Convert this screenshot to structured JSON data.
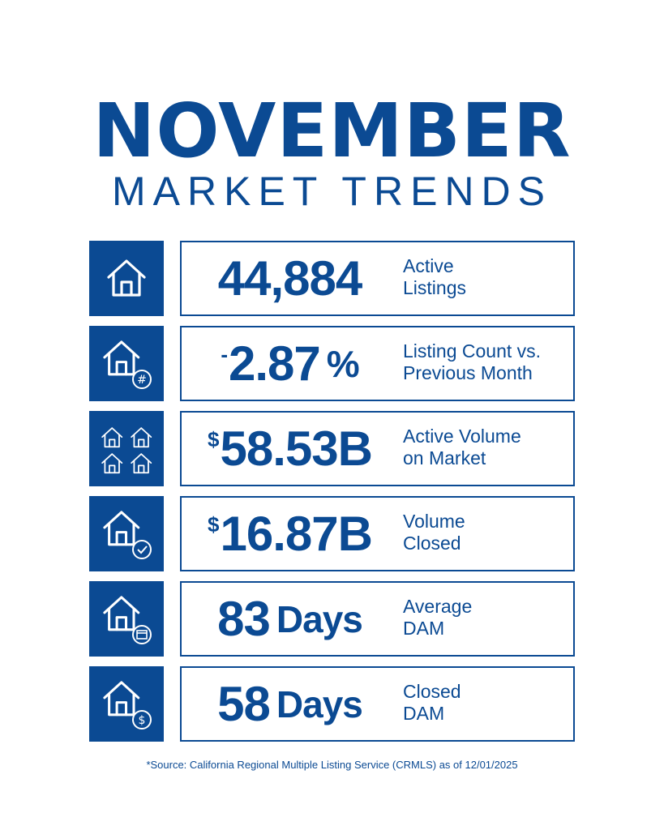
{
  "header": {
    "title": "NOVEMBER",
    "subtitle": "MARKET TRENDS"
  },
  "colors": {
    "brand": "#0b4a93",
    "background": "#ffffff"
  },
  "stats": [
    {
      "icon": "house-icon",
      "prefix": "",
      "value": "44,884",
      "suffix": "",
      "label_line1": "Active",
      "label_line2": "Listings"
    },
    {
      "icon": "house-hash-icon",
      "prefix": "-",
      "value": "2.87",
      "suffix": "%",
      "label_line1": "Listing Count vs.",
      "label_line2": "Previous Month"
    },
    {
      "icon": "four-houses-icon",
      "prefix": "$",
      "value": "58.53B",
      "suffix": "",
      "label_line1": "Active Volume",
      "label_line2": "on Market"
    },
    {
      "icon": "house-check-icon",
      "prefix": "$",
      "value": "16.87B",
      "suffix": "",
      "label_line1": "Volume",
      "label_line2": "Closed"
    },
    {
      "icon": "house-calendar-icon",
      "prefix": "",
      "value": "83",
      "suffix": "Days",
      "label_line1": "Average",
      "label_line2": "DAM"
    },
    {
      "icon": "house-dollar-icon",
      "prefix": "",
      "value": "58",
      "suffix": "Days",
      "label_line1": "Closed",
      "label_line2": "DAM"
    }
  ],
  "footer": {
    "source": "*Source: California Regional Multiple Listing Service (CRMLS) as of 12/01/2025"
  }
}
